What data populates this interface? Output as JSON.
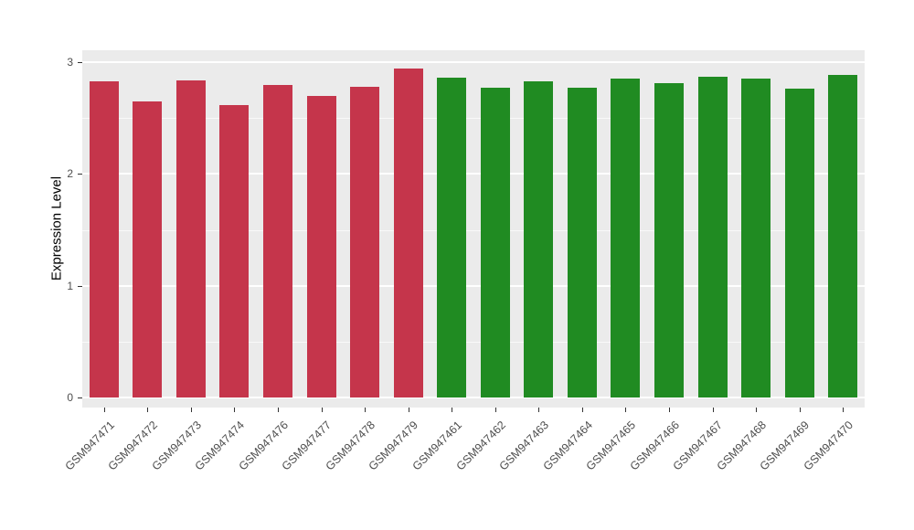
{
  "chart_data": {
    "type": "bar",
    "title": "",
    "xlabel": "",
    "ylabel": "Expression Level",
    "ylim": [
      0,
      3.1
    ],
    "yticks": [
      0,
      1,
      2,
      3
    ],
    "grid": "on",
    "legend": "none",
    "colors": {
      "red": "#C5354B",
      "green": "#208B22"
    },
    "bars": [
      {
        "label": "GSM947471",
        "value": 2.83,
        "color": "red"
      },
      {
        "label": "GSM947472",
        "value": 2.65,
        "color": "red"
      },
      {
        "label": "GSM947473",
        "value": 2.84,
        "color": "red"
      },
      {
        "label": "GSM947474",
        "value": 2.62,
        "color": "red"
      },
      {
        "label": "GSM947476",
        "value": 2.8,
        "color": "red"
      },
      {
        "label": "GSM947477",
        "value": 2.7,
        "color": "red"
      },
      {
        "label": "GSM947478",
        "value": 2.78,
        "color": "red"
      },
      {
        "label": "GSM947479",
        "value": 2.94,
        "color": "red"
      },
      {
        "label": "GSM947461",
        "value": 2.86,
        "color": "green"
      },
      {
        "label": "GSM947462",
        "value": 2.77,
        "color": "green"
      },
      {
        "label": "GSM947463",
        "value": 2.83,
        "color": "green"
      },
      {
        "label": "GSM947464",
        "value": 2.77,
        "color": "green"
      },
      {
        "label": "GSM947465",
        "value": 2.85,
        "color": "green"
      },
      {
        "label": "GSM947466",
        "value": 2.81,
        "color": "green"
      },
      {
        "label": "GSM947467",
        "value": 2.87,
        "color": "green"
      },
      {
        "label": "GSM947468",
        "value": 2.85,
        "color": "green"
      },
      {
        "label": "GSM947469",
        "value": 2.76,
        "color": "green"
      },
      {
        "label": "GSM947470",
        "value": 2.89,
        "color": "green"
      }
    ]
  }
}
